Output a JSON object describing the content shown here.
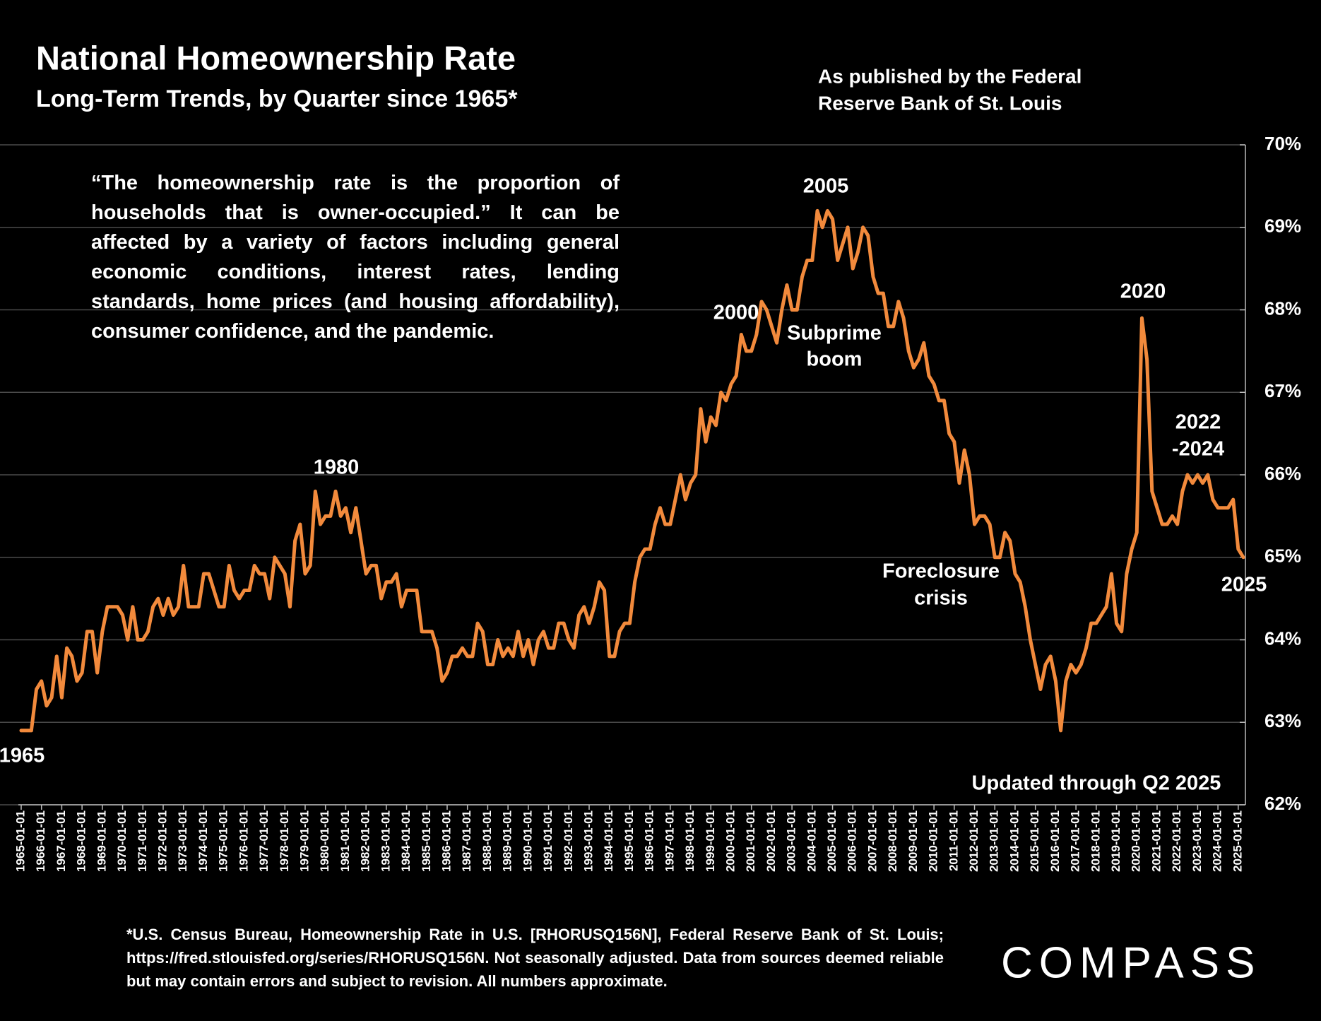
{
  "title": "National Homeownership Rate",
  "subtitle": "Long-Term Trends, by Quarter since 1965*",
  "publisher_note": [
    "As published by the Federal",
    "Reserve Bank of St. Louis"
  ],
  "quote": "“The homeownership rate is the proportion of households that is owner-occupied.” It can be affected by a variety of factors including general economic conditions, interest rates, lending standards, home prices (and housing affordability), consumer confidence, and the pandemic.",
  "source": "*U.S. Census Bureau, Homeownership Rate in U.S. [RHORUSQ156N], Federal Reserve Bank of St. Louis; https://fred.stlouisfed.org/series/RHORUSQ156N. Not seasonally adjusted. Data from sources deemed reliable but may contain errors and subject to revision. All numbers approximate.",
  "logo": "COMPASS",
  "chart_data": {
    "type": "line",
    "color": "#f28a3c",
    "grid": true,
    "ylim": [
      62,
      70
    ],
    "yticks": [
      {
        "value": 62,
        "label": "62%"
      },
      {
        "value": 63,
        "label": "63%"
      },
      {
        "value": 64,
        "label": "64%"
      },
      {
        "value": 65,
        "label": "65%"
      },
      {
        "value": 66,
        "label": "66%"
      },
      {
        "value": 67,
        "label": "67%"
      },
      {
        "value": 68,
        "label": "68%"
      },
      {
        "value": 69,
        "label": "69%"
      },
      {
        "value": 70,
        "label": "70%"
      }
    ],
    "annotations": [
      [
        "1965"
      ],
      [
        "1980"
      ],
      [
        "2000"
      ],
      [
        "2005"
      ],
      [
        "Subprime",
        "boom"
      ],
      [
        "2020"
      ],
      [
        "2022",
        "-2024"
      ],
      [
        "Foreclosure",
        "crisis"
      ],
      [
        "2025"
      ],
      [
        "Updated through Q2 2025"
      ]
    ],
    "categories": [
      "1965-01-01",
      null,
      null,
      null,
      "1966-01-01",
      null,
      null,
      null,
      "1967-01-01",
      null,
      null,
      null,
      "1968-01-01",
      null,
      null,
      null,
      "1969-01-01",
      null,
      null,
      null,
      "1970-01-01",
      null,
      null,
      null,
      "1971-01-01",
      null,
      null,
      null,
      "1972-01-01",
      null,
      null,
      null,
      "1973-01-01",
      null,
      null,
      null,
      "1974-01-01",
      null,
      null,
      null,
      "1975-01-01",
      null,
      null,
      null,
      "1976-01-01",
      null,
      null,
      null,
      "1977-01-01",
      null,
      null,
      null,
      "1978-01-01",
      null,
      null,
      null,
      "1979-01-01",
      null,
      null,
      null,
      "1980-01-01",
      null,
      null,
      null,
      "1981-01-01",
      null,
      null,
      null,
      "1982-01-01",
      null,
      null,
      null,
      "1983-01-01",
      null,
      null,
      null,
      "1984-01-01",
      null,
      null,
      null,
      "1985-01-01",
      null,
      null,
      null,
      "1986-01-01",
      null,
      null,
      null,
      "1987-01-01",
      null,
      null,
      null,
      "1988-01-01",
      null,
      null,
      null,
      "1989-01-01",
      null,
      null,
      null,
      "1990-01-01",
      null,
      null,
      null,
      "1991-01-01",
      null,
      null,
      null,
      "1992-01-01",
      null,
      null,
      null,
      "1993-01-01",
      null,
      null,
      null,
      "1994-01-01",
      null,
      null,
      null,
      "1995-01-01",
      null,
      null,
      null,
      "1996-01-01",
      null,
      null,
      null,
      "1997-01-01",
      null,
      null,
      null,
      "1998-01-01",
      null,
      null,
      null,
      "1999-01-01",
      null,
      null,
      null,
      "2000-01-01",
      null,
      null,
      null,
      "2001-01-01",
      null,
      null,
      null,
      "2002-01-01",
      null,
      null,
      null,
      "2003-01-01",
      null,
      null,
      null,
      "2004-01-01",
      null,
      null,
      null,
      "2005-01-01",
      null,
      null,
      null,
      "2006-01-01",
      null,
      null,
      null,
      "2007-01-01",
      null,
      null,
      null,
      "2008-01-01",
      null,
      null,
      null,
      "2009-01-01",
      null,
      null,
      null,
      "2010-01-01",
      null,
      null,
      null,
      "2011-01-01",
      null,
      null,
      null,
      "2012-01-01",
      null,
      null,
      null,
      "2013-01-01",
      null,
      null,
      null,
      "2014-01-01",
      null,
      null,
      null,
      "2015-01-01",
      null,
      null,
      null,
      "2016-01-01",
      null,
      null,
      null,
      "2017-01-01",
      null,
      null,
      null,
      "2018-01-01",
      null,
      null,
      null,
      "2019-01-01",
      null,
      null,
      null,
      "2020-01-01",
      null,
      null,
      null,
      "2021-01-01",
      null,
      null,
      null,
      "2022-01-01",
      null,
      null,
      null,
      "2023-01-01",
      null,
      null,
      null,
      "2024-01-01",
      null,
      null,
      null,
      "2025-01-01",
      null
    ],
    "values": [
      62.9,
      62.9,
      62.9,
      63.4,
      63.5,
      63.2,
      63.3,
      63.8,
      63.3,
      63.9,
      63.8,
      63.5,
      63.6,
      64.1,
      64.1,
      63.6,
      64.1,
      64.4,
      64.4,
      64.4,
      64.3,
      64.0,
      64.4,
      64.0,
      64.0,
      64.1,
      64.4,
      64.5,
      64.3,
      64.5,
      64.3,
      64.4,
      64.9,
      64.4,
      64.4,
      64.4,
      64.8,
      64.8,
      64.6,
      64.4,
      64.4,
      64.9,
      64.6,
      64.5,
      64.6,
      64.6,
      64.9,
      64.8,
      64.8,
      64.5,
      65.0,
      64.9,
      64.8,
      64.4,
      65.2,
      65.4,
      64.8,
      64.9,
      65.8,
      65.4,
      65.5,
      65.5,
      65.8,
      65.5,
      65.6,
      65.3,
      65.6,
      65.2,
      64.8,
      64.9,
      64.9,
      64.5,
      64.7,
      64.7,
      64.8,
      64.4,
      64.6,
      64.6,
      64.6,
      64.1,
      64.1,
      64.1,
      63.9,
      63.5,
      63.6,
      63.8,
      63.8,
      63.9,
      63.8,
      63.8,
      64.2,
      64.1,
      63.7,
      63.7,
      64.0,
      63.8,
      63.9,
      63.8,
      64.1,
      63.8,
      64.0,
      63.7,
      64.0,
      64.1,
      63.9,
      63.9,
      64.2,
      64.2,
      64.0,
      63.9,
      64.3,
      64.4,
      64.2,
      64.4,
      64.7,
      64.6,
      63.8,
      63.8,
      64.1,
      64.2,
      64.2,
      64.7,
      65.0,
      65.1,
      65.1,
      65.4,
      65.6,
      65.4,
      65.4,
      65.7,
      66.0,
      65.7,
      65.9,
      66.0,
      66.8,
      66.4,
      66.7,
      66.6,
      67.0,
      66.9,
      67.1,
      67.2,
      67.7,
      67.5,
      67.5,
      67.7,
      68.1,
      68.0,
      67.8,
      67.6,
      68.0,
      68.3,
      68.0,
      68.0,
      68.4,
      68.6,
      68.6,
      69.2,
      69.0,
      69.2,
      69.1,
      68.6,
      68.8,
      69.0,
      68.5,
      68.7,
      69.0,
      68.9,
      68.4,
      68.2,
      68.2,
      67.8,
      67.8,
      68.1,
      67.9,
      67.5,
      67.3,
      67.4,
      67.6,
      67.2,
      67.1,
      66.9,
      66.9,
      66.5,
      66.4,
      65.9,
      66.3,
      66.0,
      65.4,
      65.5,
      65.5,
      65.4,
      65.0,
      65.0,
      65.3,
      65.2,
      64.8,
      64.7,
      64.4,
      64.0,
      63.7,
      63.4,
      63.7,
      63.8,
      63.5,
      62.9,
      63.5,
      63.7,
      63.6,
      63.7,
      63.9,
      64.2,
      64.2,
      64.3,
      64.4,
      64.8,
      64.2,
      64.1,
      64.8,
      65.1,
      65.3,
      67.9,
      67.4,
      65.8,
      65.6,
      65.4,
      65.4,
      65.5,
      65.4,
      65.8,
      66.0,
      65.9,
      66.0,
      65.9,
      66.0,
      65.7,
      65.6,
      65.6,
      65.6,
      65.7,
      65.1,
      65.0
    ]
  }
}
